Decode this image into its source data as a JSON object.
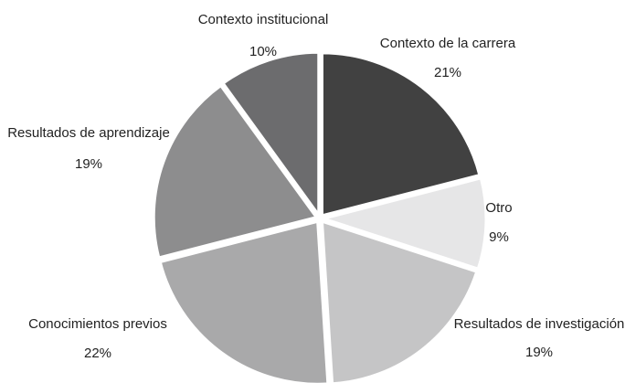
{
  "chart_data": {
    "type": "pie",
    "categories": [
      "Contexto de la carrera",
      "Otro",
      "Resultados de investigación",
      "Conocimientos previos",
      "Resultados de aprendizaje",
      "Contexto institucional"
    ],
    "values": [
      21,
      9,
      19,
      22,
      19,
      10
    ],
    "value_labels": [
      "21%",
      "9%",
      "19%",
      "22%",
      "19%",
      "10%"
    ],
    "colors": [
      "#414141",
      "#e6e6e7",
      "#c5c5c6",
      "#a9a9aa",
      "#8d8d8e",
      "#6c6c6e"
    ]
  }
}
